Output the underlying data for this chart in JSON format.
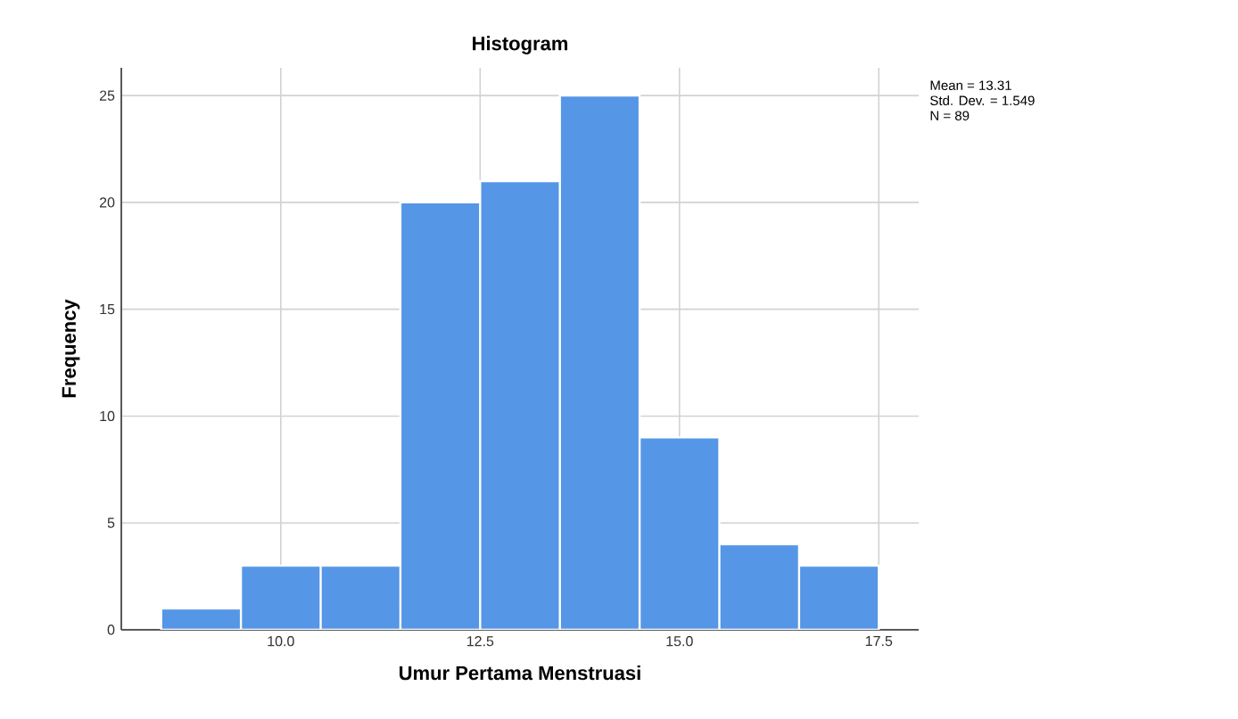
{
  "chart_data": {
    "type": "histogram",
    "title": "Histogram",
    "xlabel": "Umur Pertama Menstruasi",
    "ylabel": "Frequency",
    "bins": [
      8.5,
      9.5,
      10.5,
      11.5,
      12.5,
      13.5,
      14.5,
      15.5,
      16.5,
      17.5
    ],
    "values": [
      1,
      3,
      3,
      20,
      21,
      25,
      9,
      4,
      3
    ],
    "color": "#5596e6",
    "xlim": [
      8,
      18
    ],
    "ylim": [
      0,
      26.3
    ],
    "xticks": [
      {
        "value": 10,
        "label": "10.0"
      },
      {
        "value": 12.5,
        "label": "12.5"
      },
      {
        "value": 15,
        "label": "15.0"
      },
      {
        "value": 17.5,
        "label": "17.5"
      }
    ],
    "yticks": [
      0,
      5,
      10,
      15,
      20,
      25
    ],
    "grid": true,
    "annotations": [
      "Mean = 13.31",
      "Std. Dev. = 1.549",
      "N = 89"
    ]
  }
}
